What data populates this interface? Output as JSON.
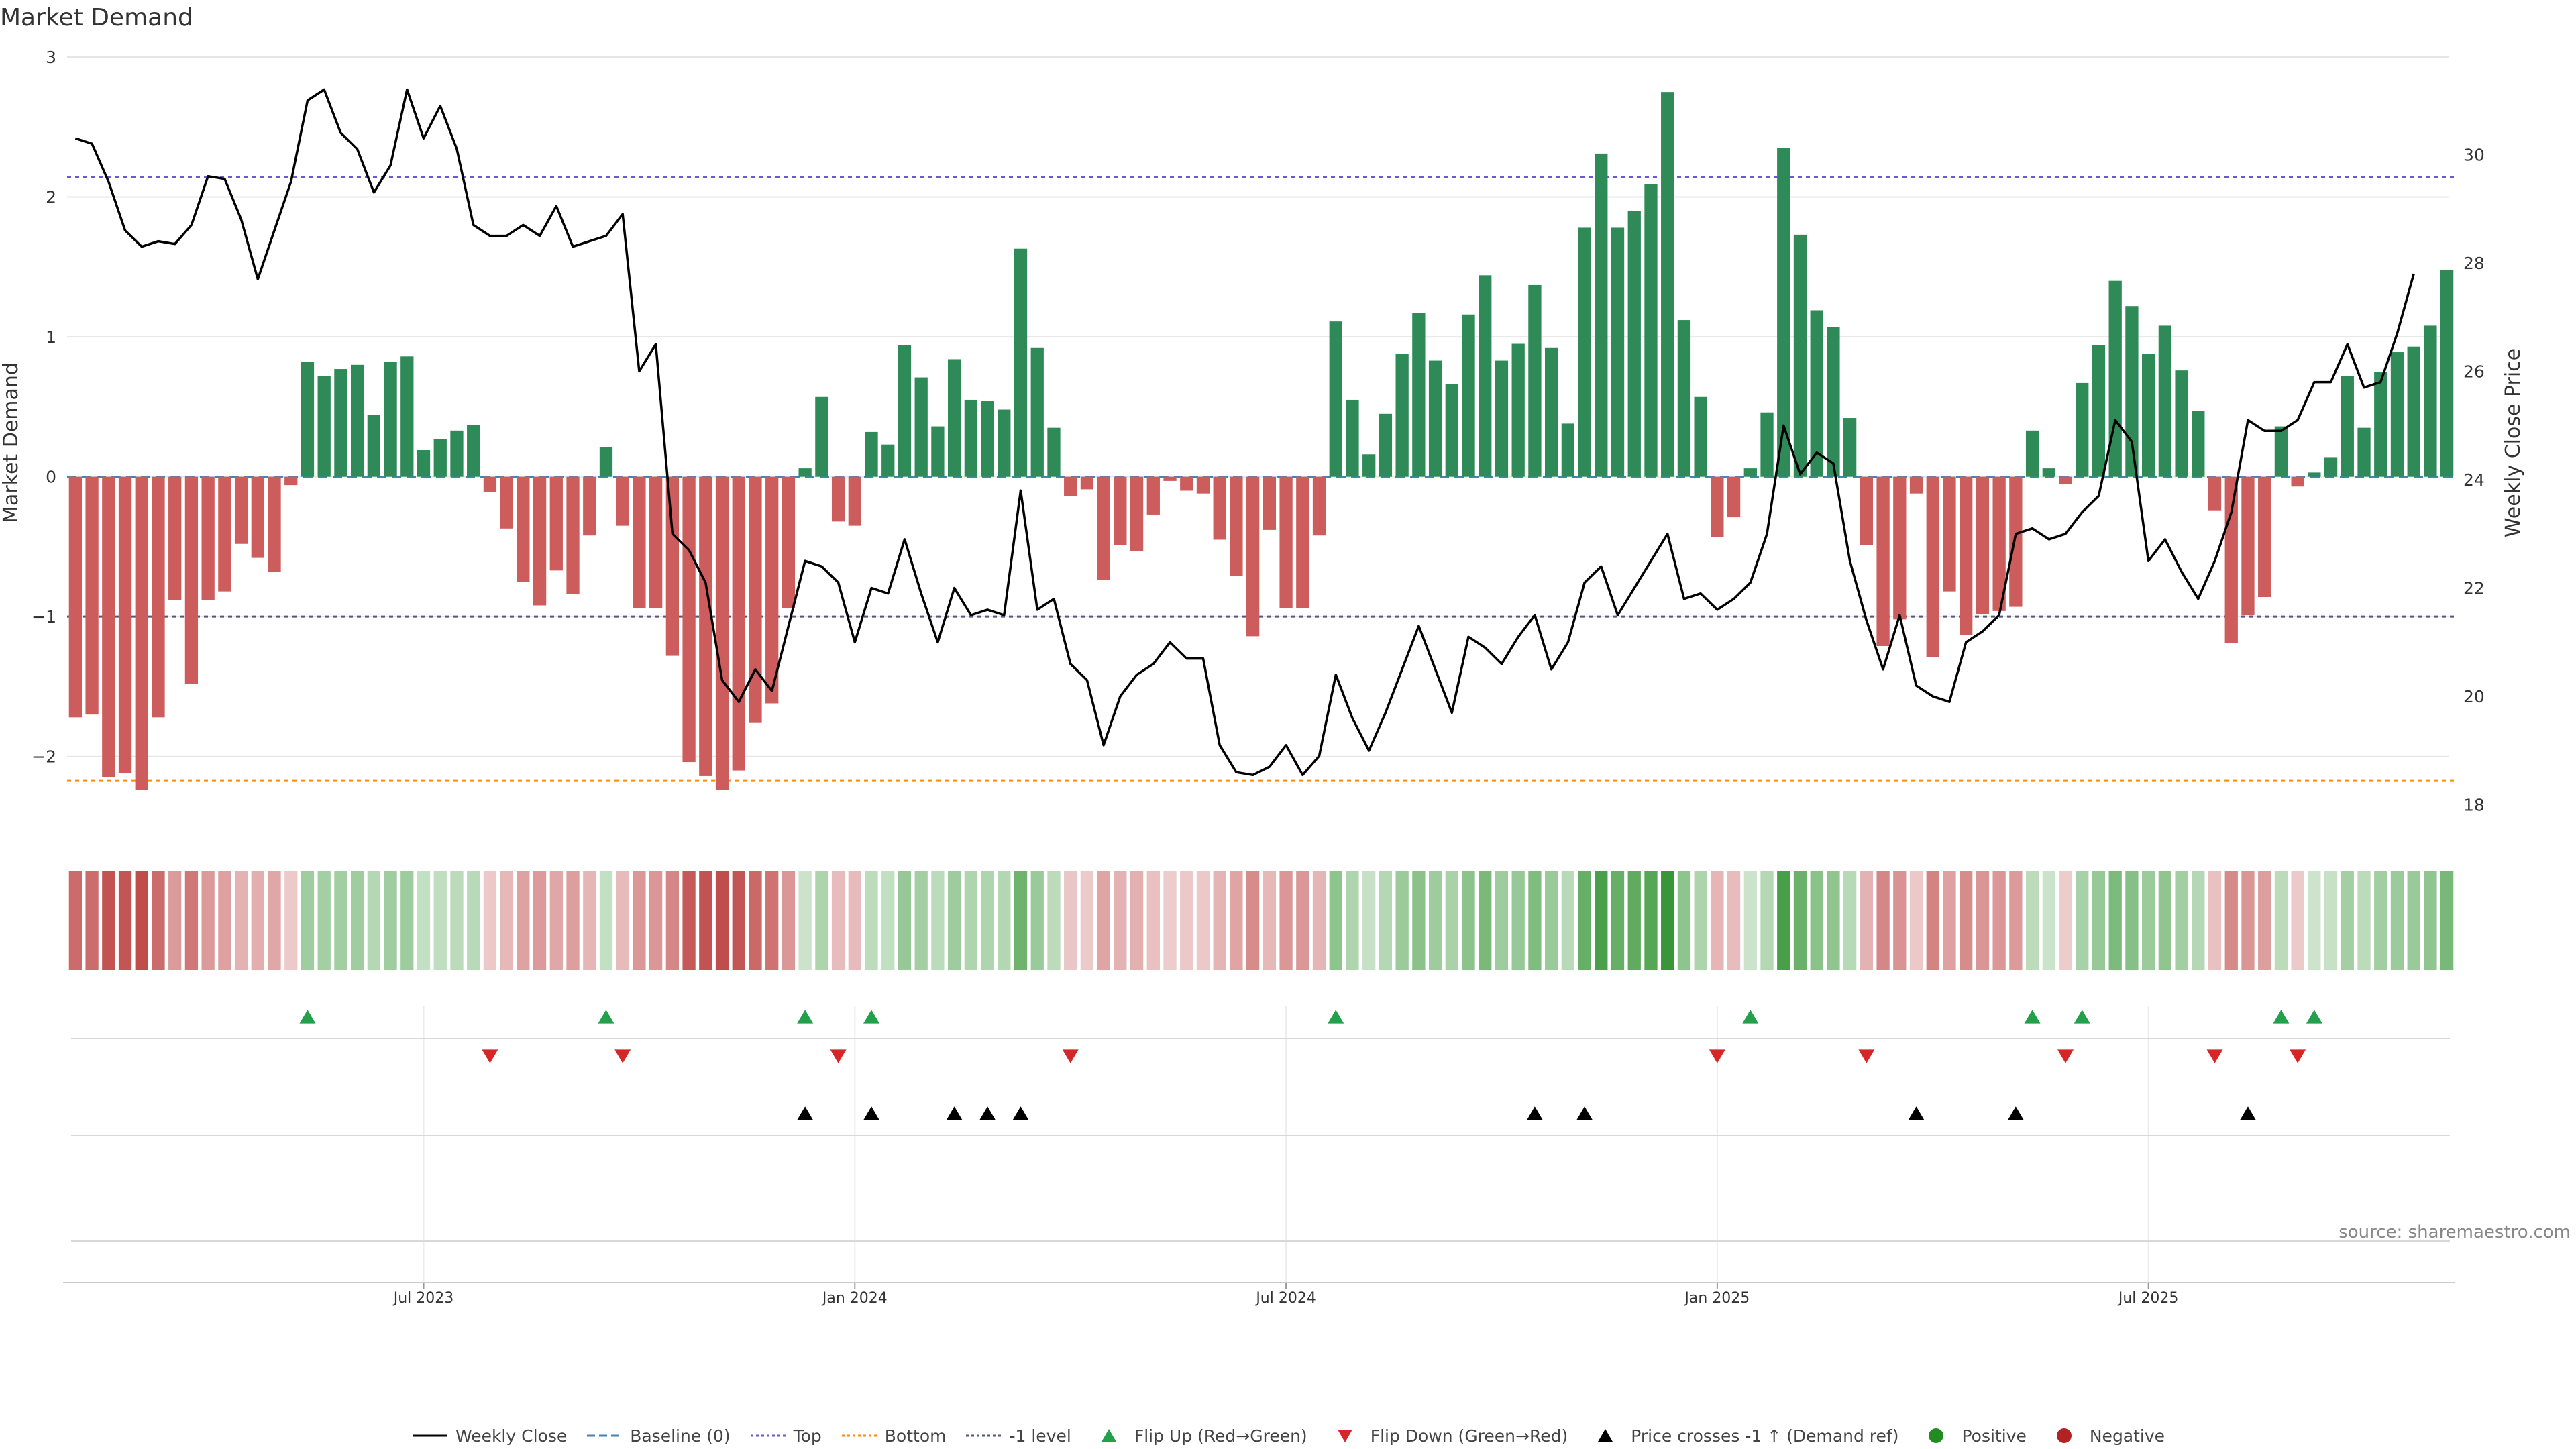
{
  "page_title": "Market Demand",
  "source_text": "source: sharemaestro.com",
  "colors": {
    "positive_bar": "#2e8b57",
    "negative_bar": "#cd5c5c",
    "price_line": "#000000",
    "baseline": "#4682b4",
    "top_line": "#6a5acd",
    "bottom_line": "#ff8c00",
    "minus_one_line": "#555577",
    "flip_up": "#22a04b",
    "flip_down": "#d62728",
    "cross": "#000000",
    "positive_dot": "#228b22",
    "negative_dot": "#b22222",
    "grid": "#e6e6e6"
  },
  "legend": [
    {
      "label": "Weekly Close",
      "key": "price_line"
    },
    {
      "label": "Baseline (0)",
      "key": "baseline"
    },
    {
      "label": "Top",
      "key": "top_line"
    },
    {
      "label": "Bottom",
      "key": "bottom_line"
    },
    {
      "label": "-1 level",
      "key": "minus_one_line"
    },
    {
      "label": "Flip Up (Red→Green)",
      "key": "flip_up"
    },
    {
      "label": "Flip Down (Green→Red)",
      "key": "flip_down"
    },
    {
      "label": "Price crosses -1 ↑ (Demand ref)",
      "key": "cross"
    },
    {
      "label": "Positive",
      "key": "positive_dot"
    },
    {
      "label": "Negative",
      "key": "negative_dot"
    }
  ],
  "chart_data": {
    "type": "bar",
    "title": "Market Demand",
    "ylabel": "Market Demand",
    "y2label": "Weekly Close Price",
    "ylim": [
      -2.5,
      3
    ],
    "y2lim": [
      17.6,
      31.8
    ],
    "yticks": [
      3,
      2,
      1,
      0,
      -1,
      -2
    ],
    "ytick_labels": [
      "3",
      "2",
      "1",
      "0",
      "−1",
      "−2"
    ],
    "y2ticks": [
      30,
      28,
      26,
      24,
      22,
      20,
      18
    ],
    "y2tick_labels": [
      "30",
      "28",
      "26",
      "24",
      "22",
      "20",
      "18"
    ],
    "reference_lines": {
      "baseline": 0,
      "top": 2.14,
      "bottom": -2.17,
      "minus_one": -1
    },
    "x_tick_indices": [
      21,
      47,
      73,
      99,
      125
    ],
    "x_tick_labels": [
      "Jul 2023",
      "Jan 2024",
      "Jul 2024",
      "Jan 2025",
      "Jul 2025"
    ],
    "series": [
      {
        "name": "Market Demand",
        "values": [
          -1.72,
          -1.7,
          -2.15,
          -2.12,
          -2.24,
          -1.72,
          -0.88,
          -1.48,
          -0.88,
          -0.82,
          -0.48,
          -0.58,
          -0.68,
          -0.06,
          0.82,
          0.72,
          0.77,
          0.8,
          0.44,
          0.82,
          0.86,
          0.19,
          0.27,
          0.33,
          0.37,
          -0.11,
          -0.37,
          -0.75,
          -0.92,
          -0.67,
          -0.84,
          -0.42,
          0.21,
          -0.35,
          -0.94,
          -0.94,
          -1.28,
          -2.04,
          -2.14,
          -2.24,
          -2.1,
          -1.76,
          -1.62,
          -0.94,
          0.06,
          0.57,
          -0.32,
          -0.35,
          0.32,
          0.23,
          0.94,
          0.71,
          0.36,
          0.84,
          0.55,
          0.54,
          0.48,
          1.63,
          0.92,
          0.35,
          -0.14,
          -0.09,
          -0.74,
          -0.49,
          -0.53,
          -0.27,
          -0.03,
          -0.1,
          -0.12,
          -0.45,
          -0.71,
          -1.14,
          -0.38,
          -0.94,
          -0.94,
          -0.42,
          1.11,
          0.55,
          0.16,
          0.45,
          0.88,
          1.17,
          0.83,
          0.66,
          1.16,
          1.44,
          0.83,
          0.95,
          1.37,
          0.92,
          0.38,
          1.78,
          2.31,
          1.78,
          1.9,
          2.09,
          2.75,
          1.12,
          0.57,
          -0.43,
          -0.29,
          0.06,
          0.46,
          2.35,
          1.73,
          1.19,
          1.07,
          0.42,
          -0.49,
          -1.21,
          -1.02,
          -0.12,
          -1.29,
          -0.82,
          -1.13,
          -0.98,
          -0.96,
          -0.93,
          0.33,
          0.06,
          -0.05,
          0.67,
          0.94,
          1.4,
          1.22,
          0.88,
          1.08,
          0.76,
          0.47,
          -0.24,
          -1.19,
          -0.99,
          -0.86,
          0.36,
          -0.07,
          0.03,
          0.14,
          0.72,
          0.35,
          0.75,
          0.89,
          0.93,
          1.08,
          1.48
        ]
      },
      {
        "name": "Weekly Close",
        "values": [
          30.3,
          30.2,
          29.5,
          28.6,
          28.3,
          28.4,
          28.35,
          28.7,
          29.6,
          29.55,
          28.8,
          27.7,
          28.6,
          29.5,
          31.0,
          31.2,
          30.4,
          30.1,
          29.3,
          29.8,
          31.2,
          30.3,
          30.9,
          30.1,
          28.7,
          28.5,
          28.5,
          28.7,
          28.5,
          29.05,
          28.3,
          28.4,
          28.5,
          28.9,
          26.0,
          26.5,
          23.0,
          22.7,
          22.1,
          20.3,
          19.9,
          20.5,
          20.1,
          21.3,
          22.5,
          22.4,
          22.1,
          21.0,
          22.0,
          21.9,
          22.9,
          21.9,
          21.0,
          22.0,
          21.5,
          21.6,
          21.5,
          23.8,
          21.6,
          21.8,
          20.6,
          20.3,
          19.1,
          20.0,
          20.4,
          20.6,
          21.0,
          20.7,
          20.7,
          19.1,
          18.6,
          18.55,
          18.7,
          19.1,
          18.55,
          18.9,
          20.4,
          19.6,
          19.0,
          19.7,
          20.5,
          21.3,
          20.5,
          19.7,
          21.1,
          20.9,
          20.6,
          21.1,
          21.5,
          20.5,
          21.0,
          22.1,
          22.4,
          21.5,
          22.0,
          22.5,
          23.0,
          21.8,
          21.9,
          21.6,
          21.8,
          22.1,
          23.0,
          25.0,
          24.1,
          24.5,
          24.3,
          22.5,
          21.4,
          20.5,
          21.5,
          20.2,
          20.0,
          19.9,
          21.0,
          21.2,
          21.5,
          23.0,
          23.1,
          22.9,
          23.0,
          23.4,
          23.7,
          25.1,
          24.7,
          22.5,
          22.9,
          22.3,
          21.8,
          22.5,
          23.4,
          25.1,
          24.9,
          24.9,
          25.1,
          25.8,
          25.8,
          26.5,
          25.7,
          25.8,
          26.7,
          27.8
        ]
      }
    ],
    "flip_up_indices": [
      14,
      32,
      44,
      48,
      76,
      101,
      118,
      121,
      133,
      135
    ],
    "flip_down_indices": [
      25,
      33,
      46,
      60,
      99,
      108,
      120,
      129,
      134
    ],
    "price_cross_indices": [
      44,
      48,
      53,
      55,
      57,
      88,
      91,
      111,
      117,
      131
    ]
  }
}
